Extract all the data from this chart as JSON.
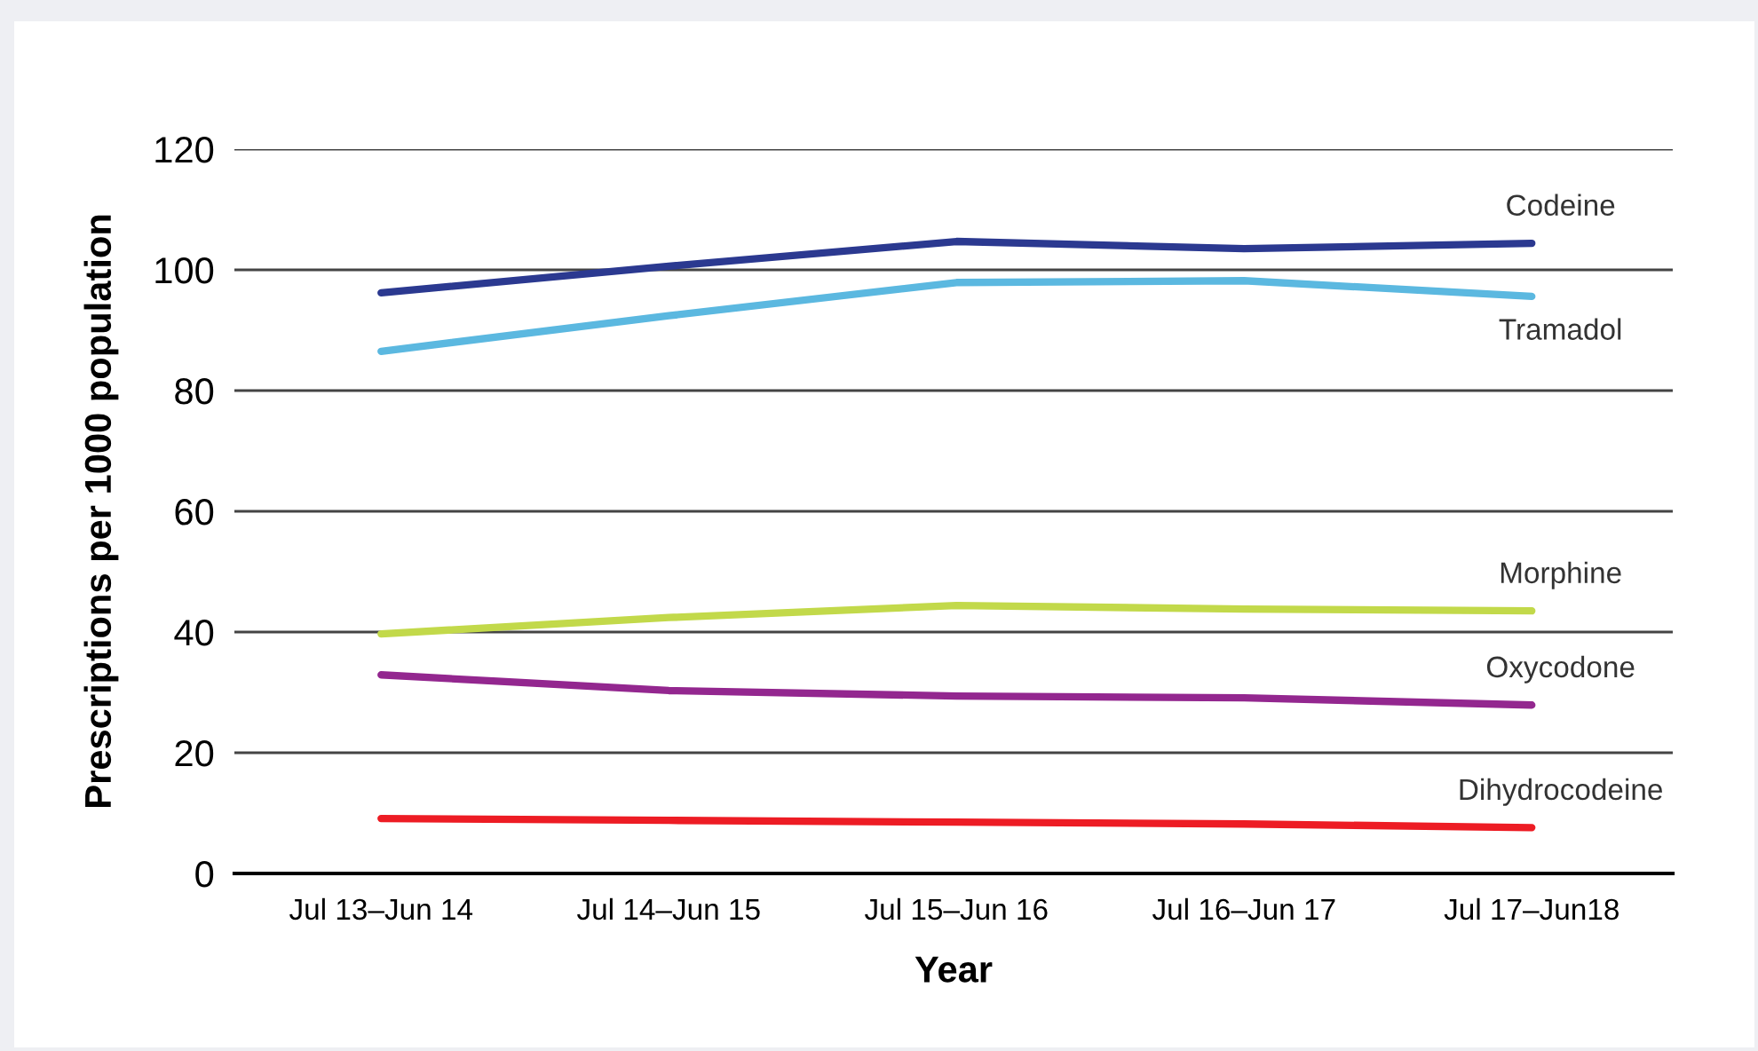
{
  "chart_data": {
    "type": "line",
    "xlabel": "Year",
    "ylabel": "Prescriptions per 1000 population",
    "categories": [
      "Jul 13–Jun 14",
      "Jul 14–Jun 15",
      "Jul 15–Jun 16",
      "Jul 16–Jun 17",
      "Jul 17–Jun18"
    ],
    "series": [
      {
        "name": "Codeine",
        "color": "#2b3990",
        "values": [
          96.2,
          100.6,
          104.7,
          103.5,
          104.4
        ]
      },
      {
        "name": "Tramadol",
        "color": "#5bb8e0",
        "values": [
          86.5,
          92.4,
          97.9,
          98.2,
          95.6
        ]
      },
      {
        "name": "Morphine",
        "color": "#c2d94a",
        "values": [
          39.7,
          42.4,
          44.4,
          43.8,
          43.5
        ]
      },
      {
        "name": "Oxycodone",
        "color": "#93278f",
        "values": [
          32.9,
          30.3,
          29.4,
          29.1,
          27.9
        ]
      },
      {
        "name": "Dihydrocodeine",
        "color": "#ed1c24",
        "values": [
          9.1,
          8.8,
          8.5,
          8.2,
          7.6
        ]
      }
    ],
    "ylim": [
      0,
      120
    ],
    "yticks": [
      0,
      20,
      40,
      60,
      80,
      100,
      120
    ],
    "grid": "y",
    "legend": false,
    "marker": "none",
    "line_style": "solid"
  }
}
